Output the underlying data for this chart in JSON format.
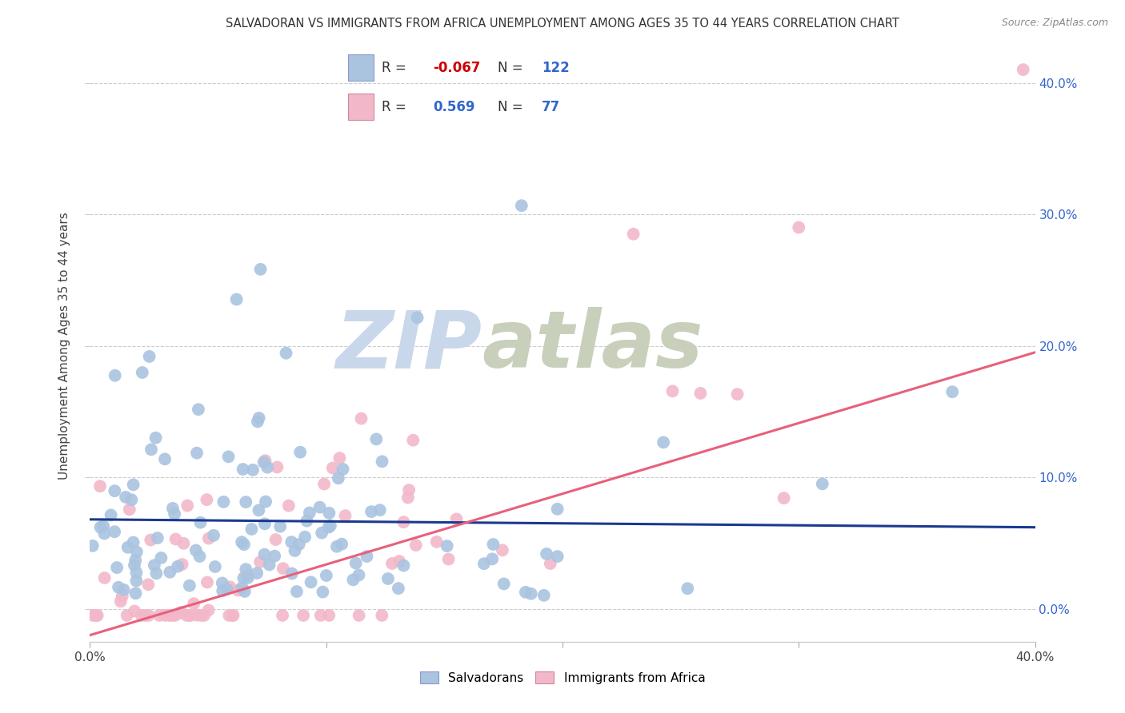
{
  "title": "SALVADORAN VS IMMIGRANTS FROM AFRICA UNEMPLOYMENT AMONG AGES 35 TO 44 YEARS CORRELATION CHART",
  "source": "Source: ZipAtlas.com",
  "ylabel": "Unemployment Among Ages 35 to 44 years",
  "legend_salvadoran": "Salvadorans",
  "legend_africa": "Immigrants from Africa",
  "R_salvadoran": "-0.067",
  "N_salvadoran": "122",
  "R_africa": "0.569",
  "N_africa": "77",
  "salvadoran_color": "#aac4e0",
  "africa_color": "#f2b8ca",
  "salvadoran_line_color": "#1a3a8f",
  "africa_line_color": "#e8607a",
  "watermark_zip": "ZIP",
  "watermark_atlas": "atlas",
  "background_color": "#ffffff",
  "watermark_color_zip": "#c8d8ea",
  "watermark_color_atlas": "#c8d0bc",
  "grid_color": "#cccccc",
  "xlim": [
    0.0,
    0.4
  ],
  "ylim": [
    -0.025,
    0.425
  ],
  "ytick_vals": [
    0.0,
    0.1,
    0.2,
    0.3,
    0.4
  ],
  "xtick_vals": [
    0.0,
    0.1,
    0.2,
    0.3,
    0.4
  ],
  "salv_line_x0": 0.0,
  "salv_line_x1": 0.4,
  "salv_line_y0": 0.068,
  "salv_line_y1": 0.062,
  "afr_line_x0": 0.0,
  "afr_line_x1": 0.4,
  "afr_line_y0": -0.02,
  "afr_line_y1": 0.195
}
